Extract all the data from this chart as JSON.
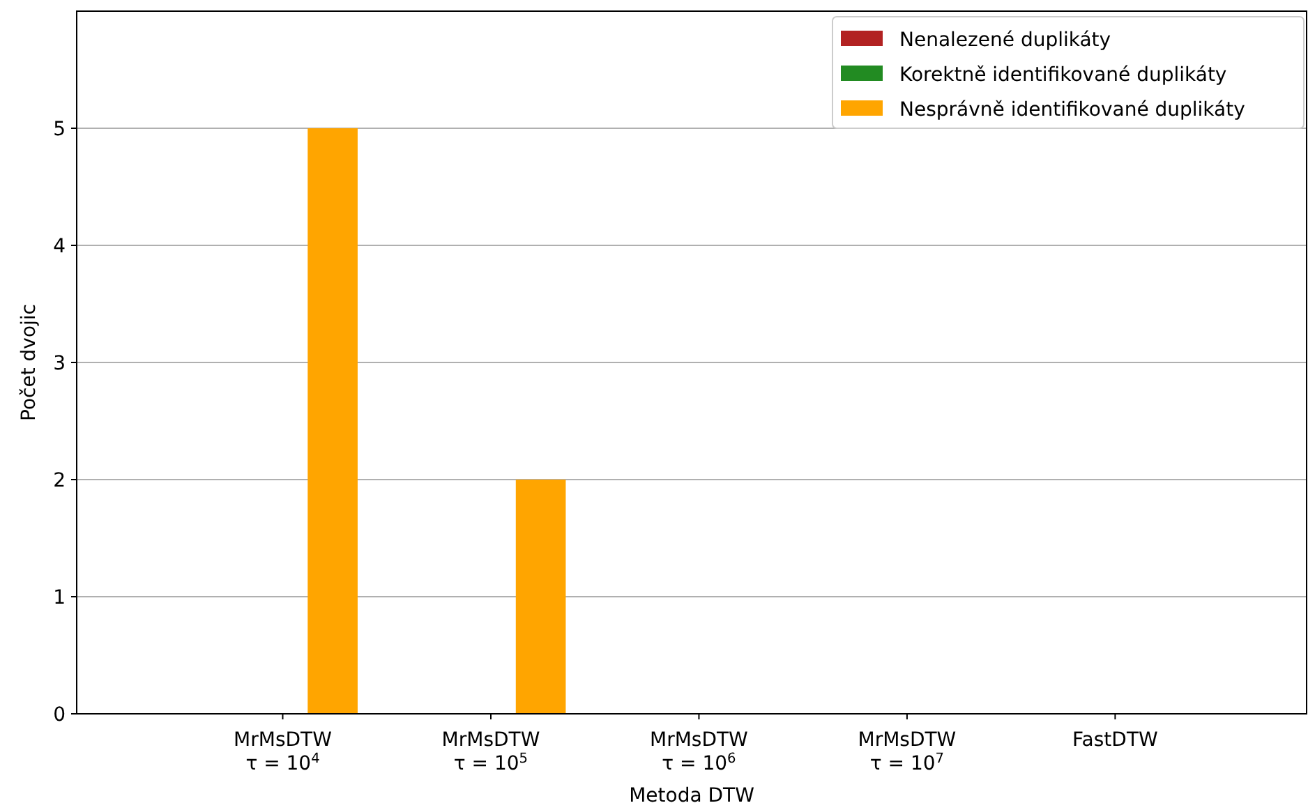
{
  "chart_data": {
    "type": "bar",
    "xlabel": "Metoda DTW",
    "ylabel": "Počet dvojic",
    "categories": [
      "MrMsDTW\nτ = 10$^{4}$",
      "MrMsDTW\nτ = 10$^{5}$",
      "MrMsDTW\nτ = 10$^{6}$",
      "MrMsDTW\nτ = 10$^{7}$",
      "FastDTW"
    ],
    "series": [
      {
        "name": "Nenalezené duplikáty",
        "color": "#b22222",
        "values": [
          0,
          0,
          0,
          0,
          0
        ]
      },
      {
        "name": "Korektně identifikované duplikáty",
        "color": "#228b22",
        "values": [
          0,
          0,
          0,
          0,
          0
        ]
      },
      {
        "name": "Nesprávně identifikované duplikáty",
        "color": "#ffa500",
        "values": [
          5,
          2,
          0,
          0,
          0
        ]
      }
    ],
    "ylim": [
      0,
      6
    ],
    "yticks": [
      0,
      1,
      2,
      3,
      4,
      5
    ],
    "grid": "y",
    "legend": "top right"
  }
}
